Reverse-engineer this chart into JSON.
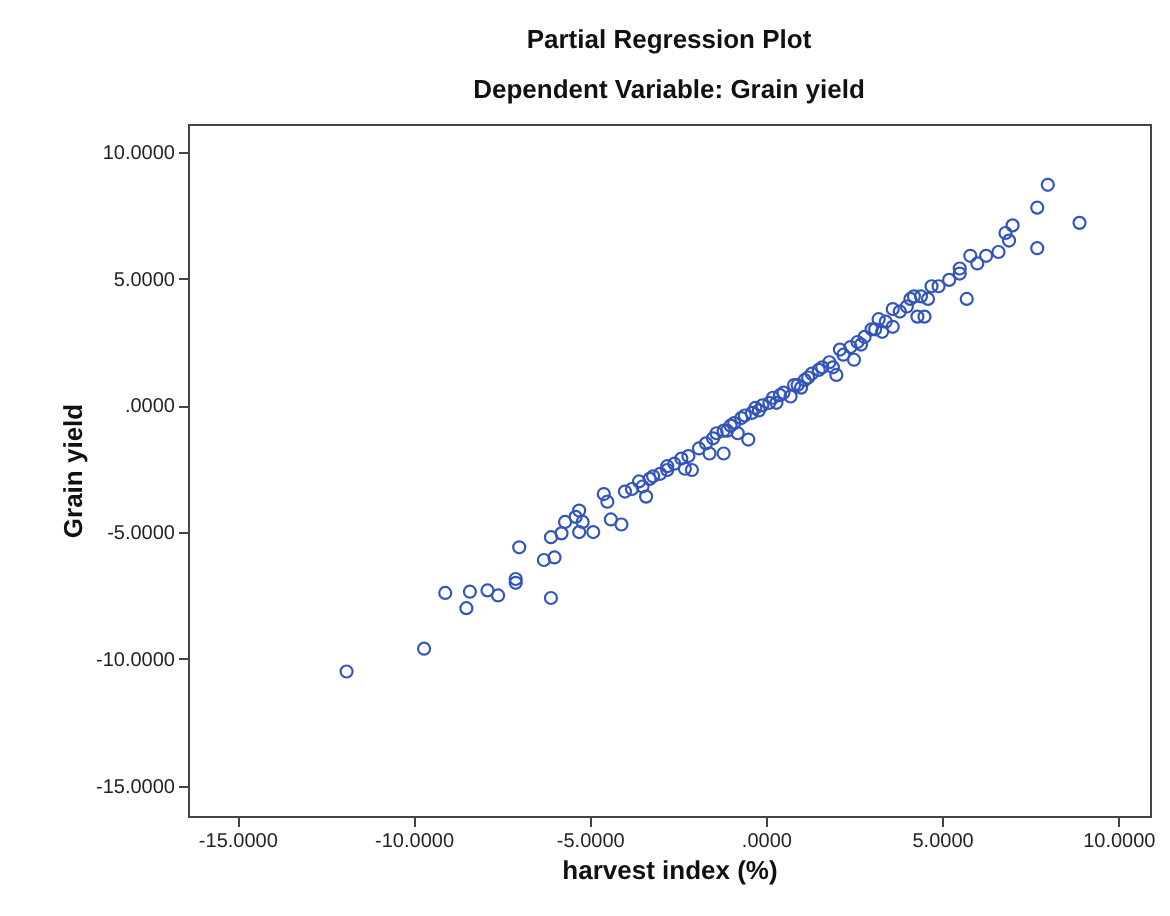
{
  "chart_data": {
    "type": "scatter",
    "title": "Partial Regression Plot",
    "subtitle": "Dependent Variable: Grain yield",
    "xlabel": "harvest index (%)",
    "ylabel": "Grain yield",
    "xlim": [
      -16.4,
      10.9
    ],
    "ylim": [
      -16.2,
      11.1
    ],
    "xticks": [
      {
        "value": -15,
        "label": "-15.0000"
      },
      {
        "value": -10,
        "label": "-10.0000"
      },
      {
        "value": -5,
        "label": "-5.0000"
      },
      {
        "value": 0,
        "label": ".0000"
      },
      {
        "value": 5,
        "label": "5.0000"
      },
      {
        "value": 10,
        "label": "10.0000"
      }
    ],
    "yticks": [
      {
        "value": -15,
        "label": "-15.0000"
      },
      {
        "value": -10,
        "label": "-10.0000"
      },
      {
        "value": -5,
        "label": "-5.0000"
      },
      {
        "value": 0,
        "label": ".0000"
      },
      {
        "value": 5,
        "label": "5.0000"
      },
      {
        "value": 10,
        "label": "10.0000"
      }
    ],
    "grid": false,
    "marker": "circle",
    "series": [
      {
        "color": "#3355bb",
        "x": [
          -11.9,
          -9.7,
          -9.1,
          -8.5,
          -8.4,
          -7.9,
          -7.6,
          -7.1,
          -7.1,
          -7.0,
          -6.1,
          -6.3,
          -6.0,
          -6.1,
          -5.8,
          -5.7,
          -5.4,
          -5.3,
          -5.2,
          -5.3,
          -4.9,
          -4.6,
          -4.5,
          -4.4,
          -4.1,
          -4.0,
          -3.5,
          -3.4,
          -3.2,
          -2.8,
          -2.1,
          -2.8,
          -1.2,
          -0.5,
          -1.1,
          -0.2,
          0.7,
          1.3,
          2.0,
          2.5,
          2.1,
          3.0,
          3.6,
          4.3,
          4.2,
          4.6,
          4.9,
          5.7,
          5.5,
          8.0,
          7.7,
          8.9,
          7.7,
          7.0,
          6.9,
          6.8,
          6.6,
          6.25,
          6.0,
          5.8,
          5.5,
          5.2,
          4.7,
          4.4,
          4.1,
          4.5,
          3.6,
          3.2,
          -3.8,
          -3.6,
          -3.3,
          -3.0,
          -2.6,
          -2.4,
          -2.2,
          -1.9,
          -1.7,
          -1.5,
          -1.4,
          -1.2,
          -1.0,
          -0.9,
          -0.7,
          -0.6,
          -0.4,
          -0.3,
          -0.1,
          0.1,
          0.2,
          0.4,
          0.5,
          0.8,
          0.9,
          1.1,
          1.2,
          1.5,
          1.6,
          1.8,
          2.2,
          2.4,
          2.6,
          2.8,
          3.1,
          3.4,
          3.8,
          4.0,
          -2.3,
          -1.6,
          -0.8,
          0.3,
          1.0,
          1.9,
          2.7,
          3.3
        ],
        "values": [
          -10.5,
          -9.6,
          -7.4,
          -8.0,
          -7.35,
          -7.3,
          -7.5,
          -6.85,
          -7.0,
          -5.6,
          -7.6,
          -6.1,
          -6.0,
          -5.2,
          -5.05,
          -4.6,
          -4.4,
          -4.15,
          -4.6,
          -5.0,
          -5.0,
          -3.5,
          -3.8,
          -4.5,
          -4.7,
          -3.4,
          -3.2,
          -3.6,
          -2.8,
          -2.55,
          -2.55,
          -2.4,
          -1.9,
          -1.35,
          -1.0,
          -0.2,
          0.35,
          1.25,
          1.2,
          1.8,
          2.2,
          3.0,
          3.1,
          3.5,
          4.3,
          4.2,
          4.7,
          4.2,
          5.2,
          8.7,
          7.8,
          7.2,
          6.2,
          7.1,
          6.5,
          6.8,
          6.05,
          5.9,
          5.6,
          5.9,
          5.4,
          4.95,
          4.7,
          4.3,
          4.2,
          3.5,
          3.8,
          3.4,
          -3.3,
          -3.0,
          -2.9,
          -2.7,
          -2.3,
          -2.1,
          -2.0,
          -1.7,
          -1.5,
          -1.3,
          -1.1,
          -1.0,
          -0.8,
          -0.7,
          -0.5,
          -0.4,
          -0.3,
          -0.1,
          0.0,
          0.1,
          0.3,
          0.4,
          0.5,
          0.8,
          0.8,
          1.0,
          1.1,
          1.4,
          1.5,
          1.7,
          2.0,
          2.3,
          2.5,
          2.7,
          3.0,
          3.3,
          3.7,
          3.9,
          -2.5,
          -1.9,
          -1.1,
          0.1,
          0.7,
          1.5,
          2.4,
          2.9
        ]
      }
    ]
  }
}
